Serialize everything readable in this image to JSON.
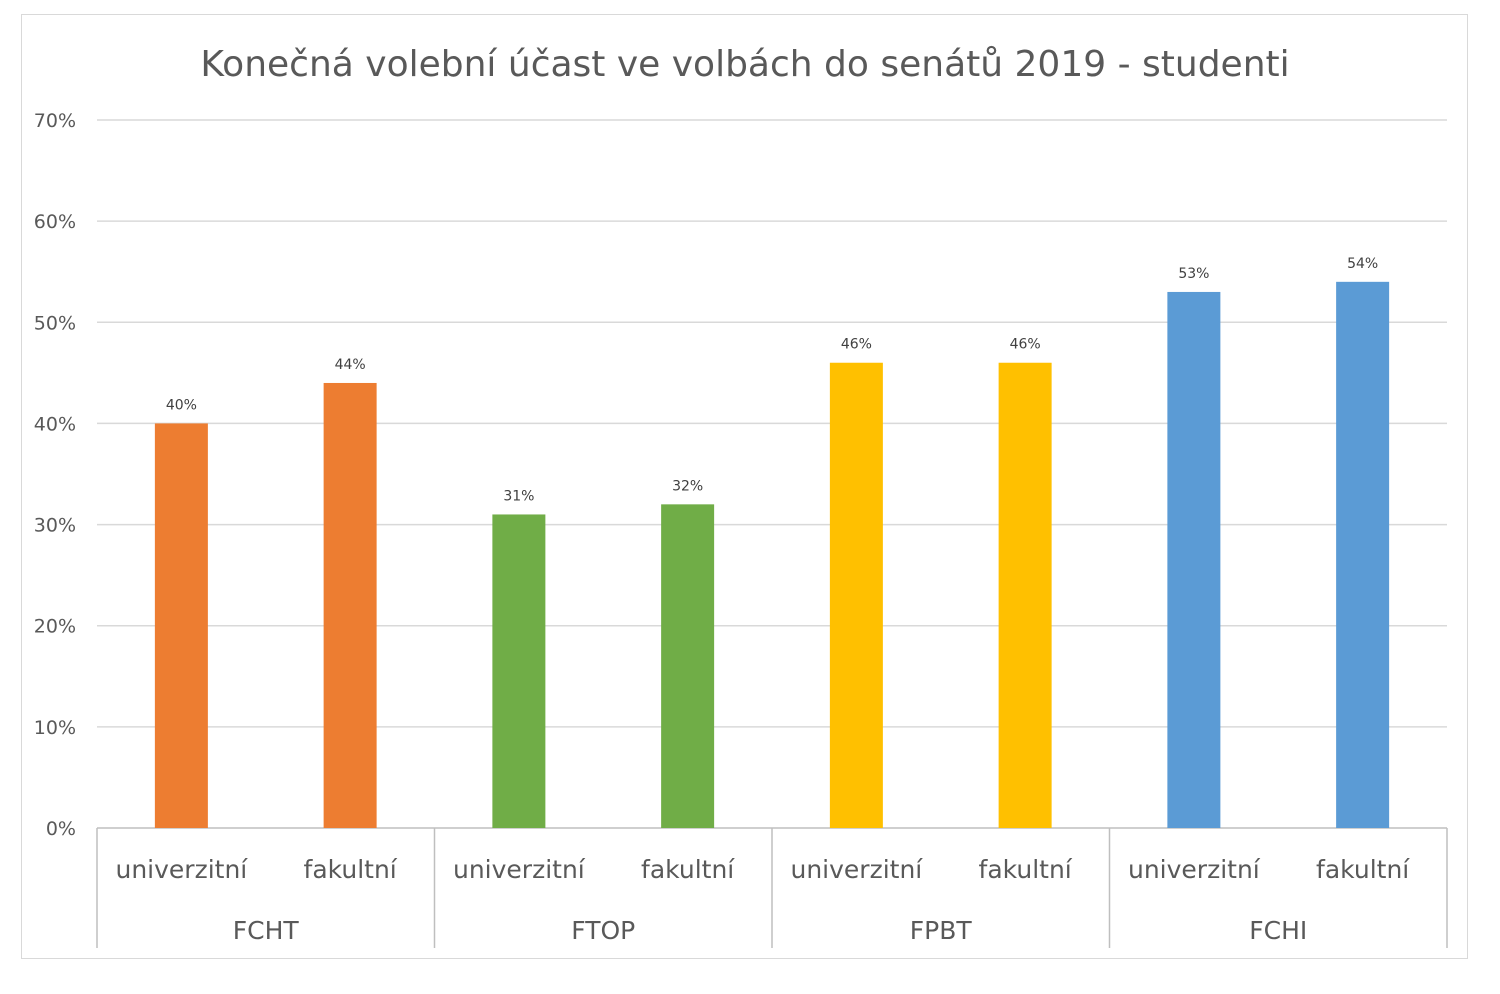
{
  "chart_data": {
    "type": "bar",
    "title": "Konečná volební účast ve volbách do senátů 2019 - studenti",
    "xlabel": "",
    "ylabel": "",
    "ylim": [
      0,
      0.7
    ],
    "y_ticks": [
      {
        "value": 0,
        "label": "0%"
      },
      {
        "value": 0.1,
        "label": "10%"
      },
      {
        "value": 0.2,
        "label": "20%"
      },
      {
        "value": 0.3,
        "label": "30%"
      },
      {
        "value": 0.4,
        "label": "40%"
      },
      {
        "value": 0.5,
        "label": "50%"
      },
      {
        "value": 0.6,
        "label": "60%"
      },
      {
        "value": 0.7,
        "label": "70%"
      }
    ],
    "groups": [
      {
        "name": "FCHT",
        "color": "#ED7D31",
        "bars": [
          {
            "category": "univerzitní",
            "value": 0.4,
            "label": "40%"
          },
          {
            "category": "fakultní",
            "value": 0.44,
            "label": "44%"
          }
        ]
      },
      {
        "name": "FTOP",
        "color": "#70AD47",
        "bars": [
          {
            "category": "univerzitní",
            "value": 0.31,
            "label": "31%"
          },
          {
            "category": "fakultní",
            "value": 0.32,
            "label": "32%"
          }
        ]
      },
      {
        "name": "FPBT",
        "color": "#FFC000",
        "bars": [
          {
            "category": "univerzitní",
            "value": 0.46,
            "label": "46%"
          },
          {
            "category": "fakultní",
            "value": 0.46,
            "label": "46%"
          }
        ]
      },
      {
        "name": "FCHI",
        "color": "#5B9BD5",
        "bars": [
          {
            "category": "univerzitní",
            "value": 0.53,
            "label": "53%"
          },
          {
            "category": "fakultní",
            "value": 0.54,
            "label": "54%"
          }
        ]
      }
    ]
  }
}
